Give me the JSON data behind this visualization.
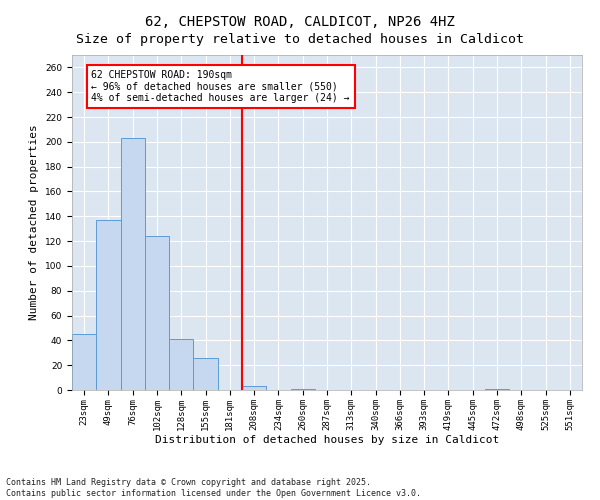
{
  "title": "62, CHEPSTOW ROAD, CALDICOT, NP26 4HZ",
  "subtitle": "Size of property relative to detached houses in Caldicot",
  "xlabel": "Distribution of detached houses by size in Caldicot",
  "ylabel": "Number of detached properties",
  "bar_labels": [
    "23sqm",
    "49sqm",
    "76sqm",
    "102sqm",
    "128sqm",
    "155sqm",
    "181sqm",
    "208sqm",
    "234sqm",
    "260sqm",
    "287sqm",
    "313sqm",
    "340sqm",
    "366sqm",
    "393sqm",
    "419sqm",
    "445sqm",
    "472sqm",
    "498sqm",
    "525sqm",
    "551sqm"
  ],
  "bar_values": [
    45,
    137,
    203,
    124,
    41,
    26,
    0,
    3,
    0,
    1,
    0,
    0,
    0,
    0,
    0,
    0,
    0,
    1,
    0,
    0,
    0
  ],
  "bar_color": "#c5d8f0",
  "bar_edge_color": "#5b9bd5",
  "background_color": "#dce6f1",
  "grid_color": "#ffffff",
  "vline_x": 6.5,
  "vline_color": "red",
  "annotation_text": "62 CHEPSTOW ROAD: 190sqm\n← 96% of detached houses are smaller (550)\n4% of semi-detached houses are larger (24) →",
  "ylim": [
    0,
    270
  ],
  "yticks": [
    0,
    20,
    40,
    60,
    80,
    100,
    120,
    140,
    160,
    180,
    200,
    220,
    240,
    260
  ],
  "footnote": "Contains HM Land Registry data © Crown copyright and database right 2025.\nContains public sector information licensed under the Open Government Licence v3.0.",
  "title_fontsize": 10,
  "label_fontsize": 8,
  "tick_fontsize": 6.5,
  "footnote_fontsize": 6
}
